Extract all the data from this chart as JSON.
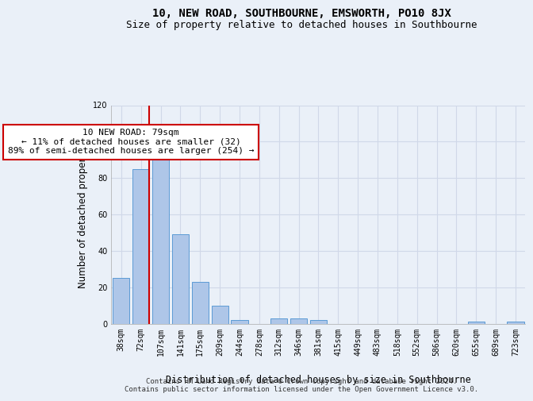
{
  "title": "10, NEW ROAD, SOUTHBOURNE, EMSWORTH, PO10 8JX",
  "subtitle": "Size of property relative to detached houses in Southbourne",
  "xlabel": "Distribution of detached houses by size in Southbourne",
  "ylabel": "Number of detached properties",
  "footer_line1": "Contains HM Land Registry data © Crown copyright and database right 2024.",
  "footer_line2": "Contains public sector information licensed under the Open Government Licence v3.0.",
  "bar_labels": [
    "38sqm",
    "72sqm",
    "107sqm",
    "141sqm",
    "175sqm",
    "209sqm",
    "244sqm",
    "278sqm",
    "312sqm",
    "346sqm",
    "381sqm",
    "415sqm",
    "449sqm",
    "483sqm",
    "518sqm",
    "552sqm",
    "586sqm",
    "620sqm",
    "655sqm",
    "689sqm",
    "723sqm"
  ],
  "bar_values": [
    25,
    85,
    90,
    49,
    23,
    10,
    2,
    0,
    3,
    3,
    2,
    0,
    0,
    0,
    0,
    0,
    0,
    0,
    1,
    0,
    1
  ],
  "bar_color": "#aec6e8",
  "bar_edge_color": "#5b9bd5",
  "grid_color": "#d0d8e8",
  "background_color": "#eaf0f8",
  "vline_x_idx": 1,
  "vline_color": "#cc0000",
  "annotation_text": "10 NEW ROAD: 79sqm\n← 11% of detached houses are smaller (32)\n89% of semi-detached houses are larger (254) →",
  "annotation_box_color": "#ffffff",
  "annotation_box_edge": "#cc0000",
  "ylim": [
    0,
    120
  ],
  "yticks": [
    0,
    20,
    40,
    60,
    80,
    100,
    120
  ],
  "title_fontsize": 10,
  "subtitle_fontsize": 9,
  "xlabel_fontsize": 8.5,
  "ylabel_fontsize": 8.5,
  "tick_fontsize": 7,
  "footer_fontsize": 6.5,
  "annotation_fontsize": 8
}
